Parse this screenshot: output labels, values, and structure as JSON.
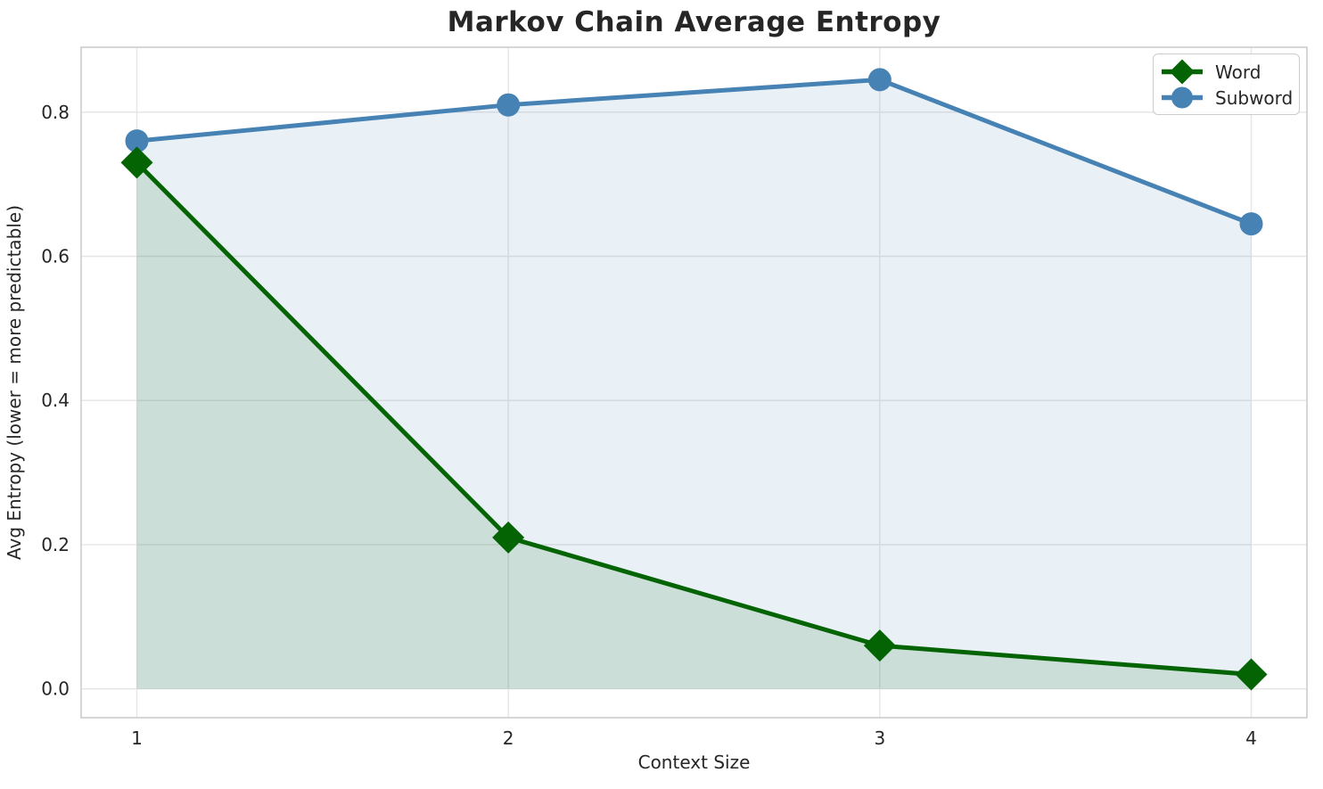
{
  "chart_data": {
    "type": "line",
    "title": "Markov Chain Average Entropy",
    "xlabel": "Context Size",
    "ylabel": "Avg Entropy (lower = more predictable)",
    "x": [
      1,
      2,
      3,
      4
    ],
    "xtick_labels": [
      "1",
      "2",
      "3",
      "4"
    ],
    "yticks": [
      0.0,
      0.2,
      0.4,
      0.6,
      0.8
    ],
    "ytick_labels": [
      "0.0",
      "0.2",
      "0.4",
      "0.6",
      "0.8"
    ],
    "xlim": [
      0.85,
      4.15
    ],
    "ylim": [
      -0.04,
      0.89
    ],
    "grid": true,
    "legend_position": "upper right",
    "series": [
      {
        "name": "Word",
        "marker": "diamond",
        "color": "#046404",
        "fill_alpha": 0.12,
        "values": [
          0.73,
          0.21,
          0.06,
          0.02
        ]
      },
      {
        "name": "Subword",
        "marker": "circle",
        "color": "#4682b4",
        "fill_alpha": 0.12,
        "values": [
          0.76,
          0.81,
          0.845,
          0.645
        ]
      }
    ]
  },
  "colors": {
    "background": "#ffffff",
    "grid": "#e5e5e5",
    "spine": "#cccccc",
    "text": "#262626"
  }
}
